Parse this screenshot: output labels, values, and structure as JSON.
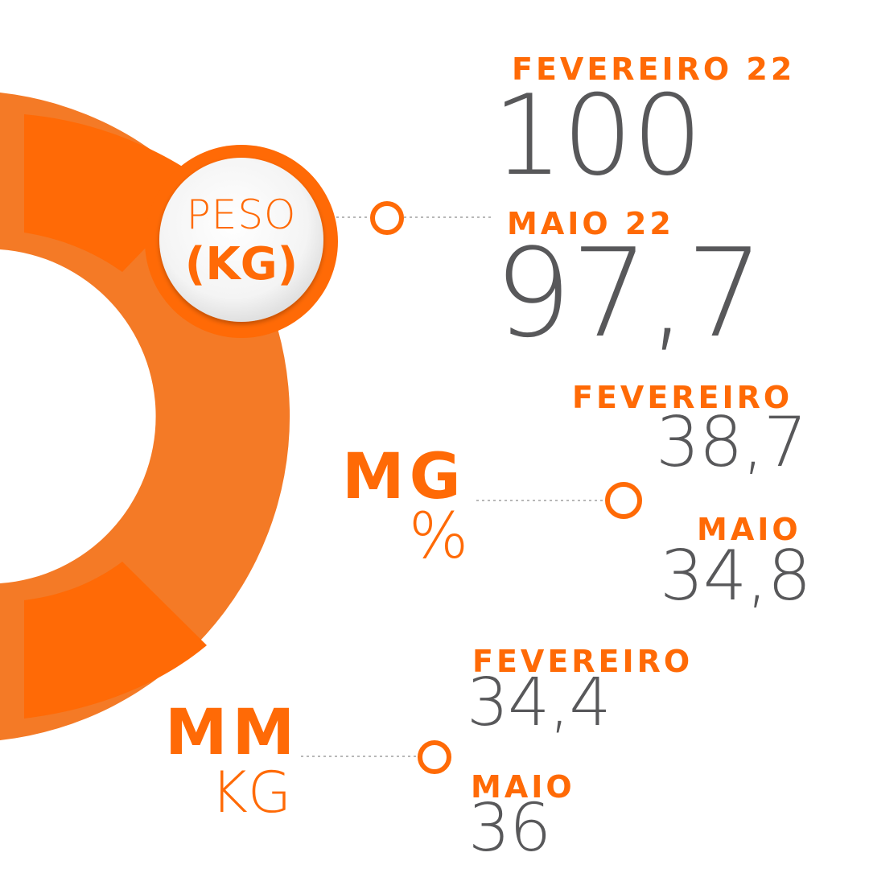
{
  "theme": {
    "accent": "#ff6a06",
    "ring_outer": "#f47a26",
    "ring_inner": "#ff6a06",
    "value_gray": "#58585a",
    "connector_gray": "#b8b8b8"
  },
  "metrics": {
    "peso": {
      "label": "PESO",
      "unit": "(KG)",
      "readings": [
        {
          "period": "FEVEREIRO 22",
          "value": "100"
        },
        {
          "period": "MAIO 22",
          "value": "97,7"
        }
      ]
    },
    "mg": {
      "label": "MG",
      "unit": "%",
      "readings": [
        {
          "period": "FEVEREIRO",
          "value": "38,7"
        },
        {
          "period": "MAIO",
          "value": "34,8"
        }
      ]
    },
    "mm": {
      "label": "MM",
      "unit": "KG",
      "readings": [
        {
          "period": "FEVEREIRO",
          "value": "34,4"
        },
        {
          "period": "MAIO",
          "value": "36"
        }
      ]
    }
  }
}
